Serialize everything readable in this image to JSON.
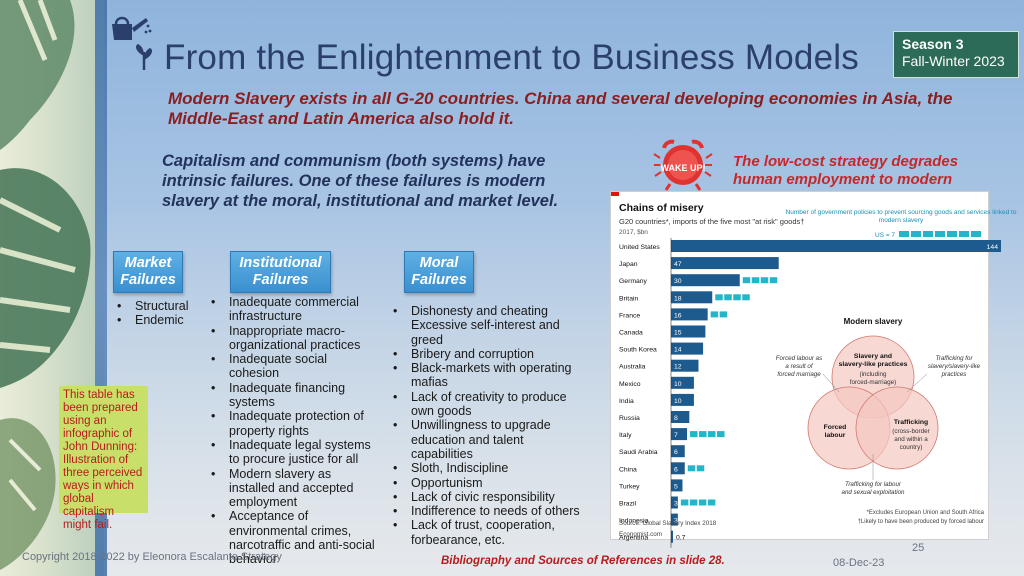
{
  "slide": {
    "title_a": "From the ",
    "title_b": "Enlightenment to Business Models",
    "season_line1": "Season 3",
    "season_line2": "Fall-Winter 2023",
    "subtitle": "Modern Slavery exists in all G-20 countries. China and several developing economies in Asia, the Middle-East and Latin America also hold it.",
    "intro": "Capitalism and communism (both systems) have intrinsic failures. One of these failures is modern slavery at the moral, institutional and market level.",
    "alarm_label": "WAKE UP!",
    "lowcost": "The low-cost strategy degrades human employment to modern slavery."
  },
  "columns": {
    "market": {
      "header_l1": "Market",
      "header_l2": "Failures",
      "items": [
        "Structural",
        "Endemic"
      ]
    },
    "institutional": {
      "header_l1": "Institutional",
      "header_l2": "Failures",
      "items": [
        "Inadequate commercial infrastructure",
        "Inappropriate macro-organizational practices",
        "Inadequate social cohesion",
        "Inadequate financing systems",
        "Inadequate protection of property rights",
        "Inadequate legal systems to procure justice for all",
        "Modern slavery as installed and accepted employment",
        "Acceptance of environmental crimes, narcotraffic and anti-social behavior"
      ]
    },
    "moral": {
      "header_l1": "Moral",
      "header_l2": "Failures",
      "items": [
        "Dishonesty and cheating Excessive self-interest and greed",
        "Bribery and corruption",
        "Black-markets with operating mafias",
        "Lack of creativity to produce own goods",
        "Unwillingness to upgrade education and talent capabilities",
        "Sloth, Indiscipline",
        "Opportunism",
        "Lack of civic responsibility",
        "Indifference to needs of others",
        "Lack of trust, cooperation, forbearance, etc."
      ]
    }
  },
  "note": "This table has been prepared using an infographic of John Dunning: Illustration of three perceived ways in which global capitalism might fail.",
  "footer": {
    "copyright": "Copyright 2018-2022 by Eleonora Escalante Strategy",
    "bibliography": "Bibliography and Sources of References in slide 28.",
    "date": "08-Dec-23",
    "page": "25"
  },
  "chart_data": {
    "type": "bar",
    "title": "Chains of misery",
    "subtitle": "G20 countries*, imports of the five most \"at risk\" goods†",
    "unit_label": "2017, $bn",
    "right_header": "Number of government policies to prevent sourcing goods and services linked to modern slavery",
    "us_label": "US = 7",
    "categories": [
      "United States",
      "Japan",
      "Germany",
      "Britain",
      "France",
      "Canada",
      "South Korea",
      "Australia",
      "Mexico",
      "India",
      "Russia",
      "Italy",
      "Saudi Arabia",
      "China",
      "Turkey",
      "Brazil",
      "Indonesia",
      "Argentina"
    ],
    "values": [
      144,
      47,
      30,
      18,
      16,
      15,
      14,
      12,
      10,
      10,
      8,
      7,
      6,
      6,
      5,
      3,
      3,
      0.7
    ],
    "value_labels": [
      "144",
      "47",
      "30",
      "18",
      "16",
      "15",
      "14",
      "12",
      "10",
      "10",
      "8",
      "7",
      "6",
      "6",
      "5",
      "3",
      "3",
      "0.7"
    ],
    "policies": [
      7,
      0,
      4,
      4,
      2,
      0,
      0,
      0,
      0,
      0,
      0,
      4,
      0,
      2,
      0,
      4,
      0,
      0
    ],
    "bar_color": "#1d5a8e",
    "policy_color": "#24b5c9",
    "venn_title": "Modern slavery",
    "venn_top": "Slavery and slavery-like practices",
    "venn_top_sub": "(including forced-marriage)",
    "venn_left": "Forced labour",
    "venn_right": "Trafficking",
    "venn_right_sub": "(cross-border and within a country)",
    "ann_left": "Forced labour as a result of forced marriage",
    "ann_right": "Trafficking for slavery/slavery-like practices",
    "ann_bottom": "Trafficking for labour and sexual exploitation",
    "footnote1": "*Excludes European Union and South Africa",
    "footnote2": "†Likely to have been produced by forced labour",
    "source": "Source: Global Slavery Index 2018",
    "credit": "Economist.com"
  }
}
